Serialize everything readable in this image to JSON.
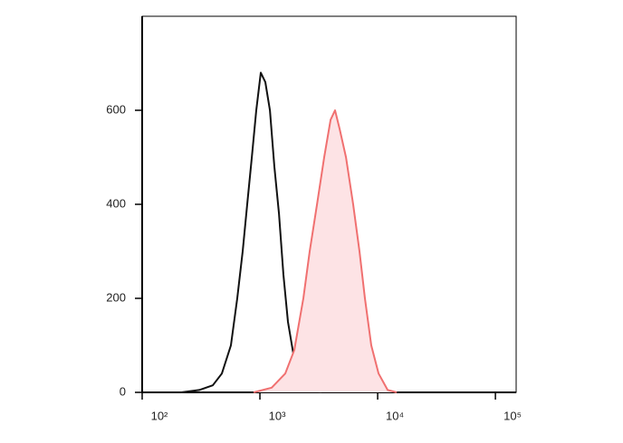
{
  "chart_data": {
    "type": "line",
    "xscale": "log",
    "xlim": [
      100,
      150000
    ],
    "xticks": [
      {
        "value": 100,
        "label": "10²"
      },
      {
        "value": 1000,
        "label": "10³"
      },
      {
        "value": 10000,
        "label": "10⁴"
      },
      {
        "value": 100000,
        "label": "10⁵"
      }
    ],
    "ylim": [
      0,
      800
    ],
    "yticks": [
      0,
      200,
      400,
      600
    ],
    "series": [
      {
        "color": "#111111",
        "fill": "none",
        "x": [
          214,
          305,
          398,
          475,
          567,
          642,
          714,
          780,
          853,
          931,
          1018,
          1112,
          1216,
          1327,
          1452,
          1585,
          1730,
          1960,
          2339,
          2793,
          3334
        ],
        "values": [
          0,
          5,
          15,
          40,
          100,
          200,
          300,
          400,
          500,
          600,
          680,
          660,
          600,
          480,
          380,
          250,
          150,
          70,
          20,
          5,
          0
        ]
      },
      {
        "color": "#f07070",
        "fill": "#fde3e5",
        "x": [
          884,
          1259,
          1641,
          1960,
          2339,
          2649,
          3055,
          3516,
          3981,
          4345,
          4753,
          5383,
          6194,
          7015,
          7798,
          8831,
          10184,
          12155,
          14515
        ],
        "values": [
          0,
          10,
          40,
          90,
          200,
          300,
          400,
          500,
          580,
          600,
          560,
          500,
          400,
          300,
          200,
          100,
          40,
          5,
          0
        ]
      }
    ]
  }
}
